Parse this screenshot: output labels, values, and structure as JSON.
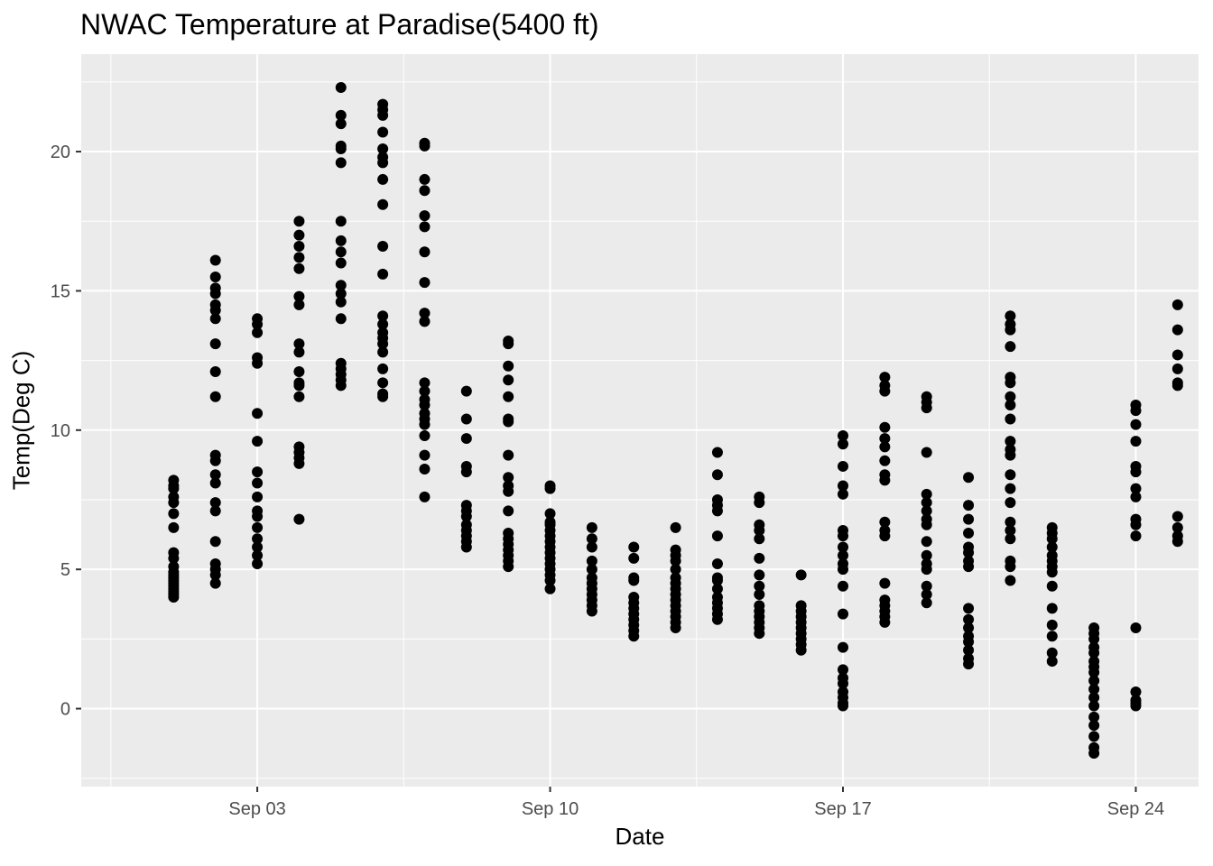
{
  "chart_data": {
    "type": "scatter",
    "title": "NWAC Temperature at Paradise(5400 ft)",
    "xlabel": "Date",
    "ylabel": "Temp(Deg C)",
    "x_ticks": [
      "Sep 03",
      "Sep 10",
      "Sep 17",
      "Sep 24"
    ],
    "y_ticks": [
      0,
      5,
      10,
      15,
      20
    ],
    "xlim": [
      "Aug 29 19:00",
      "Sep 25 12:00"
    ],
    "ylim": [
      -2.8,
      23.5
    ],
    "grid": true,
    "background": "#ebebeb",
    "point_color": "#000000",
    "series": [
      {
        "points": [
          {
            "date": "Sep 01",
            "temps": [
              4.0,
              4.1,
              4.2,
              4.3,
              4.4,
              4.5,
              4.6,
              4.7,
              4.8,
              4.9,
              5.1,
              5.4,
              5.6,
              6.5,
              7.0,
              7.4,
              7.6,
              7.9,
              8.0,
              8.2
            ]
          },
          {
            "date": "Sep 02",
            "temps": [
              4.5,
              4.8,
              5.0,
              5.2,
              6.0,
              7.1,
              7.4,
              8.1,
              8.4,
              8.9,
              9.1,
              11.2,
              12.1,
              13.1,
              14.0,
              14.3,
              14.5,
              14.9,
              15.1,
              15.5,
              16.1
            ]
          },
          {
            "date": "Sep 03",
            "temps": [
              5.2,
              5.5,
              5.8,
              6.1,
              6.5,
              6.9,
              7.1,
              7.6,
              8.1,
              8.5,
              9.6,
              10.6,
              12.4,
              12.6,
              13.5,
              13.8,
              14.0
            ]
          },
          {
            "date": "Sep 04",
            "temps": [
              6.8,
              8.8,
              9.0,
              9.2,
              9.4,
              11.2,
              11.6,
              11.7,
              12.1,
              12.8,
              13.1,
              14.5,
              14.8,
              15.8,
              16.2,
              16.6,
              17.0,
              17.5
            ]
          },
          {
            "date": "Sep 05",
            "temps": [
              11.6,
              11.8,
              12.0,
              12.2,
              12.4,
              14.0,
              14.6,
              14.9,
              15.2,
              16.0,
              16.4,
              16.8,
              17.5,
              19.6,
              20.1,
              20.2,
              21.0,
              21.3,
              22.3
            ]
          },
          {
            "date": "Sep 06",
            "temps": [
              11.2,
              11.3,
              11.7,
              12.2,
              12.8,
              13.1,
              13.3,
              13.5,
              13.8,
              14.1,
              15.6,
              16.6,
              18.1,
              19.0,
              19.6,
              19.8,
              20.1,
              20.7,
              21.3,
              21.5,
              21.7
            ]
          },
          {
            "date": "Sep 07",
            "temps": [
              7.6,
              8.6,
              9.1,
              9.8,
              10.2,
              10.4,
              10.6,
              10.9,
              11.1,
              11.4,
              11.7,
              13.9,
              14.2,
              15.3,
              16.4,
              17.3,
              17.7,
              18.6,
              19.0,
              20.2,
              20.3
            ]
          },
          {
            "date": "Sep 08",
            "temps": [
              5.8,
              6.0,
              6.2,
              6.4,
              6.6,
              6.9,
              7.1,
              7.3,
              8.5,
              8.7,
              9.7,
              10.4,
              11.4
            ]
          },
          {
            "date": "Sep 09",
            "temps": [
              5.1,
              5.3,
              5.5,
              5.7,
              5.9,
              6.1,
              6.3,
              7.1,
              7.8,
              8.0,
              8.3,
              9.1,
              10.3,
              10.4,
              11.2,
              11.8,
              12.3,
              13.1,
              13.2
            ]
          },
          {
            "date": "Sep 10",
            "temps": [
              4.3,
              4.6,
              4.8,
              5.0,
              5.2,
              5.4,
              5.6,
              5.8,
              6.0,
              6.2,
              6.4,
              6.6,
              6.7,
              7.0,
              7.9,
              8.0
            ]
          },
          {
            "date": "Sep 11",
            "temps": [
              3.5,
              3.7,
              3.9,
              4.1,
              4.3,
              4.5,
              4.7,
              5.0,
              5.3,
              5.8,
              6.1,
              6.5
            ]
          },
          {
            "date": "Sep 12",
            "temps": [
              2.6,
              2.8,
              3.0,
              3.2,
              3.4,
              3.6,
              3.8,
              4.0,
              4.6,
              4.7,
              5.4,
              5.8
            ]
          },
          {
            "date": "Sep 13",
            "temps": [
              2.9,
              3.1,
              3.3,
              3.5,
              3.7,
              3.9,
              4.1,
              4.3,
              4.5,
              4.7,
              5.0,
              5.3,
              5.5,
              5.7,
              6.5
            ]
          },
          {
            "date": "Sep 14",
            "temps": [
              3.2,
              3.4,
              3.6,
              3.8,
              4.0,
              4.3,
              4.6,
              4.7,
              5.2,
              6.2,
              7.1,
              7.3,
              7.5,
              8.4,
              9.2
            ]
          },
          {
            "date": "Sep 15",
            "temps": [
              2.7,
              2.9,
              3.1,
              3.3,
              3.5,
              3.7,
              4.1,
              4.4,
              4.8,
              5.4,
              6.1,
              6.4,
              6.6,
              7.4,
              7.6
            ]
          },
          {
            "date": "Sep 16",
            "temps": [
              2.1,
              2.3,
              2.5,
              2.7,
              2.9,
              3.1,
              3.3,
              3.5,
              3.7,
              4.8
            ]
          },
          {
            "date": "Sep 17",
            "temps": [
              0.1,
              0.2,
              0.4,
              0.6,
              0.9,
              1.1,
              1.4,
              2.2,
              3.4,
              4.4,
              5.0,
              5.2,
              5.5,
              5.8,
              6.2,
              6.4,
              7.7,
              8.0,
              8.7,
              9.5,
              9.8
            ]
          },
          {
            "date": "Sep 18",
            "temps": [
              3.1,
              3.3,
              3.5,
              3.7,
              3.9,
              4.5,
              6.2,
              6.4,
              6.7,
              8.2,
              8.4,
              8.9,
              9.4,
              9.7,
              10.1,
              11.4,
              11.6,
              11.9
            ]
          },
          {
            "date": "Sep 19",
            "temps": [
              3.8,
              4.1,
              4.4,
              5.0,
              5.2,
              5.5,
              6.0,
              6.6,
              6.8,
              7.1,
              7.4,
              7.7,
              9.2,
              10.8,
              11.0,
              11.2
            ]
          },
          {
            "date": "Sep 20",
            "temps": [
              1.6,
              1.8,
              2.1,
              2.4,
              2.6,
              2.9,
              3.2,
              3.6,
              5.1,
              5.3,
              5.6,
              5.8,
              6.3,
              6.8,
              7.3,
              8.3
            ]
          },
          {
            "date": "Sep 21",
            "temps": [
              4.6,
              5.1,
              5.3,
              6.1,
              6.4,
              6.7,
              7.4,
              7.9,
              8.4,
              9.1,
              9.3,
              9.6,
              10.4,
              10.9,
              11.2,
              11.7,
              11.9,
              13.0,
              13.6,
              13.8,
              14.1
            ]
          },
          {
            "date": "Sep 22",
            "temps": [
              1.7,
              2.0,
              2.6,
              3.0,
              3.6,
              4.4,
              4.9,
              5.1,
              5.3,
              5.5,
              5.8,
              6.1,
              6.3,
              6.5
            ]
          },
          {
            "date": "Sep 23",
            "temps": [
              -1.6,
              -1.4,
              -1.0,
              -0.6,
              -0.3,
              0.1,
              0.4,
              0.7,
              1.0,
              1.3,
              1.5,
              1.7,
              2.0,
              2.2,
              2.5,
              2.7,
              2.9
            ]
          },
          {
            "date": "Sep 24",
            "temps": [
              0.1,
              0.2,
              0.3,
              0.6,
              2.9,
              6.2,
              6.6,
              6.8,
              7.6,
              7.9,
              8.5,
              8.7,
              9.6,
              10.2,
              10.7,
              10.9
            ]
          },
          {
            "date": "Sep 25",
            "temps": [
              6.0,
              6.2,
              6.5,
              6.9,
              11.6,
              11.7,
              12.2,
              12.7,
              13.6,
              14.5
            ]
          }
        ]
      }
    ]
  }
}
